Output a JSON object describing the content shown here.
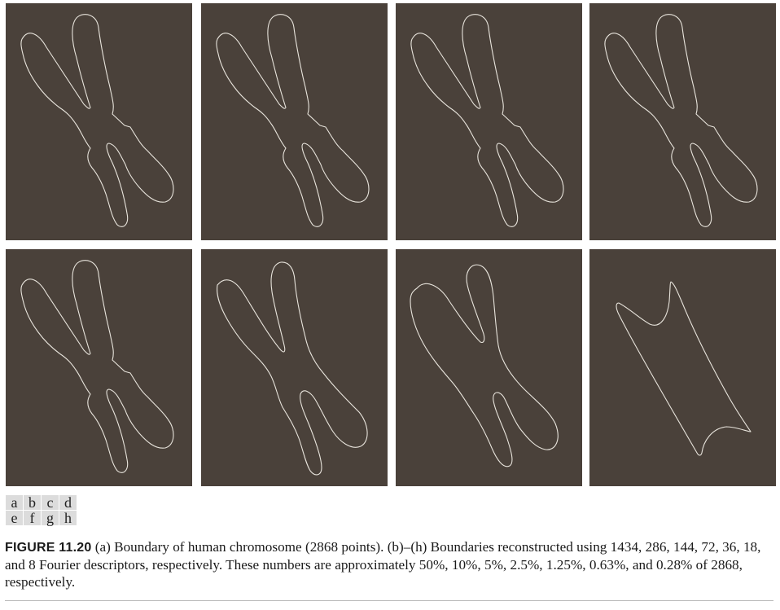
{
  "panel_key": {
    "row1": [
      "a",
      "b",
      "c",
      "d"
    ],
    "row2": [
      "e",
      "f",
      "g",
      "h"
    ]
  },
  "caption": {
    "label": "FIGURE 11.20",
    "text": " (a) Boundary of human chromosome (2868 points). (b)–(h) Boundaries reconstructed using 1434, 286, 144, 72, 36, 18, and 8 Fourier descriptors, respectively. These numbers are approximately 50%, 10%, 5%, 2.5%, 1.25%, 0.63%, and 0.28% of 2868, respectively."
  },
  "colors": {
    "panel_background": "#4a413a",
    "boundary_line": "#e8e4dc"
  }
}
